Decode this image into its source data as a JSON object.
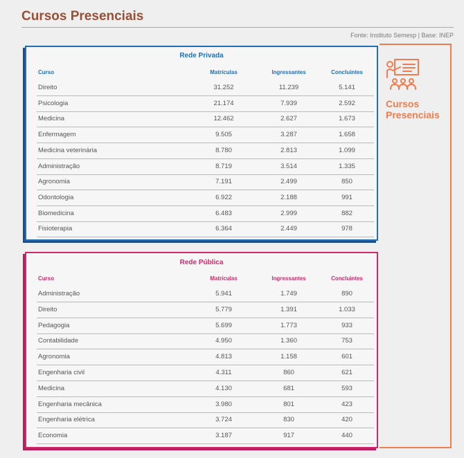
{
  "page": {
    "title": "Cursos Presenciais",
    "source": "Fonte: Instituto Semesp | Base: INEP",
    "side_label_line1": "Cursos",
    "side_label_line2": "Presenciais",
    "colors": {
      "title": "#9a4e33",
      "private": "#1f6fb8",
      "public": "#d6266b",
      "accent": "#ef7d4f"
    },
    "side_icon": "teacher-presentation-icon"
  },
  "private": {
    "title": "Rede Privada",
    "headers": {
      "course": "Curso",
      "enrollments": "Matrículas",
      "entrants": "Ingressantes",
      "graduates": "Concluintes"
    },
    "rows": [
      {
        "course": "Direito",
        "enrollments": "31.252",
        "entrants": "11.239",
        "graduates": "5.141"
      },
      {
        "course": "Psicologia",
        "enrollments": "21.174",
        "entrants": "7.939",
        "graduates": "2.592"
      },
      {
        "course": "Medicina",
        "enrollments": "12.462",
        "entrants": "2.627",
        "graduates": "1.673"
      },
      {
        "course": "Enfermagem",
        "enrollments": "9.505",
        "entrants": "3.287",
        "graduates": "1.658"
      },
      {
        "course": "Medicina veterinária",
        "enrollments": "8.780",
        "entrants": "2.813",
        "graduates": "1.099"
      },
      {
        "course": "Administração",
        "enrollments": "8.719",
        "entrants": "3.514",
        "graduates": "1.335"
      },
      {
        "course": "Agronomia",
        "enrollments": "7.191",
        "entrants": "2.499",
        "graduates": "850"
      },
      {
        "course": "Odontologia",
        "enrollments": "6.922",
        "entrants": "2.188",
        "graduates": "991"
      },
      {
        "course": "Biomedicina",
        "enrollments": "6.483",
        "entrants": "2.999",
        "graduates": "882"
      },
      {
        "course": "Fisioterapia",
        "enrollments": "6.364",
        "entrants": "2.449",
        "graduates": "978"
      }
    ]
  },
  "public": {
    "title": "Rede Pública",
    "headers": {
      "course": "Curso",
      "enrollments": "Matrículas",
      "entrants": "Ingressantes",
      "graduates": "Concluintes"
    },
    "rows": [
      {
        "course": "Administração",
        "enrollments": "5.941",
        "entrants": "1.749",
        "graduates": "890"
      },
      {
        "course": "Direito",
        "enrollments": "5.779",
        "entrants": "1.391",
        "graduates": "1.033"
      },
      {
        "course": "Pedagogia",
        "enrollments": "5.699",
        "entrants": "1.773",
        "graduates": "933"
      },
      {
        "course": "Contabilidade",
        "enrollments": "4.950",
        "entrants": "1.360",
        "graduates": "753"
      },
      {
        "course": "Agronomia",
        "enrollments": "4.813",
        "entrants": "1.158",
        "graduates": "601"
      },
      {
        "course": "Engenharia civil",
        "enrollments": "4.311",
        "entrants": "860",
        "graduates": "621"
      },
      {
        "course": "Medicina",
        "enrollments": "4.130",
        "entrants": "681",
        "graduates": "593"
      },
      {
        "course": "Engenharia mecânica",
        "enrollments": "3.980",
        "entrants": "801",
        "graduates": "423"
      },
      {
        "course": "Engenharia elétrica",
        "enrollments": "3.724",
        "entrants": "830",
        "graduates": "420"
      },
      {
        "course": "Economia",
        "enrollments": "3.187",
        "entrants": "917",
        "graduates": "440"
      }
    ]
  }
}
